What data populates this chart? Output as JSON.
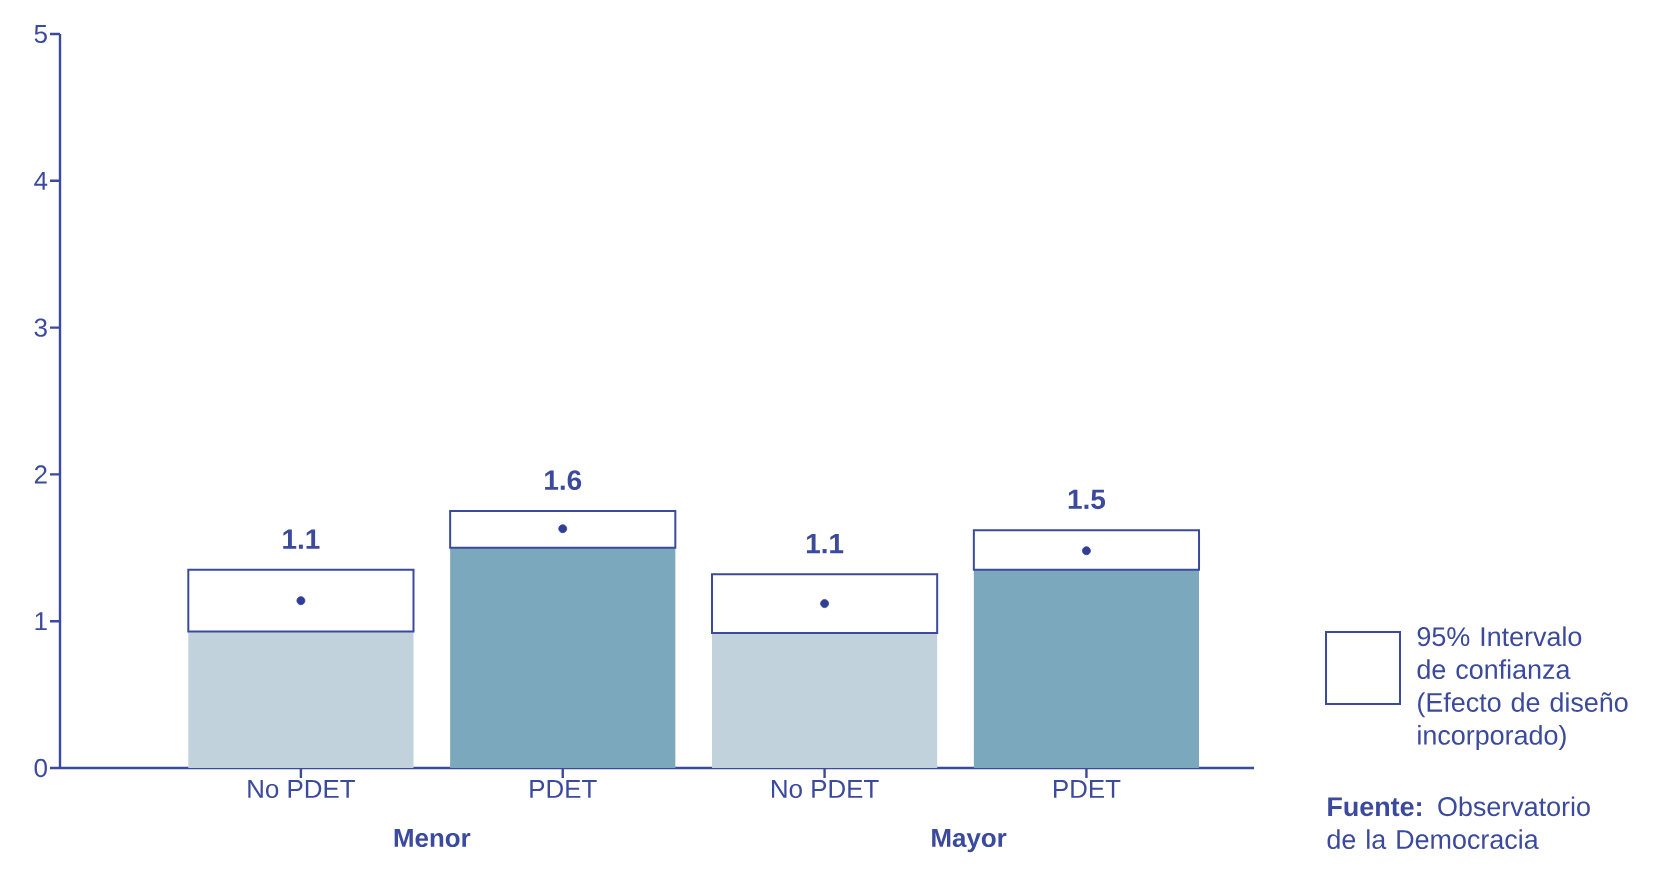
{
  "chart_data": {
    "type": "bar",
    "stacked": true,
    "categories": [
      "No PDET",
      "PDET",
      "No PDET",
      "PDET"
    ],
    "ylim": [
      0,
      5
    ],
    "yticks": [
      0,
      1,
      2,
      3,
      4,
      5
    ],
    "legend": "bottom right",
    "series": [
      {
        "colors": [
          "#c1d2dc",
          "#7ba8bd",
          "#c1d2dc",
          "#7ba8bd"
        ],
        "values": [
          0.93,
          1.5,
          0.92,
          1.35
        ]
      },
      {
        "name": "95% Intervalo de confianza (Efecto de diseño incorporado)",
        "color": "#ffffff",
        "values": [
          0.42,
          0.25,
          0.4,
          0.27
        ]
      },
      {
        "type": "scatter",
        "color": "#2f3f95",
        "values": [
          1.14,
          1.63,
          1.12,
          1.48
        ],
        "value_labels": [
          "1.1",
          "1.6",
          "1.1",
          "1.5"
        ]
      }
    ],
    "annotations": [
      "Menor",
      "Mayor",
      "**Fuente:** Observatorio de la Democracia"
    ]
  }
}
